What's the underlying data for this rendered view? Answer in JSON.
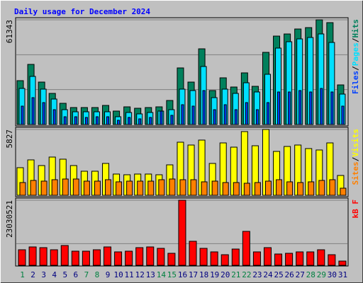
{
  "chart_data": [
    {
      "type": "bar",
      "title": "Daily usage for December 2024",
      "ylim": [
        0,
        61343
      ],
      "yticks": [
        61343
      ],
      "legend_separator": "/",
      "series": [
        {
          "name": "Hits",
          "color": "#00805c",
          "values": [
            25700,
            35230,
            24870,
            18240,
            12430,
            9950,
            9950,
            9950,
            11190,
            7880,
            10360,
            9530,
            9950,
            10360,
            14090,
            33160,
            24870,
            44350,
            19900,
            27360,
            21970,
            30260,
            22380,
            42280,
            51810,
            53050,
            55960,
            56780,
            61343,
            59690,
            23210
          ]
        },
        {
          "name": "Pages",
          "color": "#00e0ff",
          "values": [
            21140,
            28190,
            20730,
            14920,
            8700,
            7460,
            7460,
            7460,
            7460,
            4560,
            7050,
            6220,
            7050,
            7880,
            8700,
            20730,
            19900,
            33990,
            15750,
            20730,
            18240,
            24460,
            19070,
            29430,
            44770,
            48500,
            50150,
            50980,
            53060,
            48080,
            17820
          ]
        },
        {
          "name": "Files",
          "color": "#0040ff",
          "values": [
            10780,
            15750,
            12850,
            8700,
            4560,
            4560,
            4150,
            4560,
            4560,
            2490,
            4150,
            3320,
            4150,
            7880,
            5390,
            11610,
            10780,
            19900,
            8700,
            11610,
            8700,
            12850,
            8700,
            12850,
            19070,
            19070,
            19900,
            19070,
            21140,
            19070,
            10780
          ]
        }
      ]
    },
    {
      "type": "bar",
      "ylim": [
        0,
        5827
      ],
      "yticks": [
        5827
      ],
      "legend_separator": "/",
      "series": [
        {
          "name": "Visits",
          "color": "#ffff00",
          "values": [
            2444,
            3133,
            2632,
            3384,
            3196,
            2632,
            2130,
            2130,
            2820,
            1880,
            1817,
            1880,
            1880,
            1817,
            2694,
            4700,
            4449,
            4887,
            2820,
            4637,
            4261,
            5640,
            4386,
            5827,
            3885,
            4324,
            4449,
            4136,
            4010,
            4637,
            1754
          ]
        },
        {
          "name": "Sites",
          "color": "#ff8000",
          "values": [
            1128,
            1316,
            1253,
            1379,
            1441,
            1441,
            1253,
            1253,
            1379,
            1191,
            1253,
            1253,
            1253,
            1379,
            1441,
            1379,
            1379,
            1191,
            1253,
            1128,
            1128,
            1065,
            1128,
            1253,
            1379,
            1191,
            1128,
            1191,
            1316,
            1379,
            627
          ]
        }
      ]
    },
    {
      "type": "bar",
      "ylim": [
        0,
        23030521
      ],
      "yticks": [
        23030521
      ],
      "categories": [
        "1",
        "2",
        "3",
        "4",
        "5",
        "6",
        "7",
        "8",
        "9",
        "10",
        "11",
        "12",
        "13",
        "14",
        "15",
        "16",
        "17",
        "18",
        "19",
        "20",
        "21",
        "22",
        "23",
        "24",
        "25",
        "26",
        "27",
        "28",
        "29",
        "30",
        "31"
      ],
      "category_colors": [
        "#008040",
        "#000080",
        "#000080",
        "#000080",
        "#000080",
        "#000080",
        "#008040",
        "#008040",
        "#000080",
        "#000080",
        "#000080",
        "#000080",
        "#000080",
        "#008040",
        "#008040",
        "#000080",
        "#000080",
        "#000080",
        "#000080",
        "#000080",
        "#008040",
        "#008040",
        "#000080",
        "#000080",
        "#000080",
        "#000080",
        "#000080",
        "#008040",
        "#008040",
        "#000080",
        "#000080"
      ],
      "series": [
        {
          "name": "kB F",
          "color": "#ff0000",
          "values": [
            5507300,
            6508630,
            6258300,
            5507300,
            7009300,
            5006640,
            5006640,
            5507300,
            6508630,
            4756310,
            5006640,
            6258300,
            6508630,
            6007970,
            4255640,
            23030521,
            8511290,
            6007970,
            4756310,
            3754980,
            5757640,
            12015940,
            4756310,
            6258300,
            4005310,
            4255640,
            4756310,
            4756310,
            5507300,
            3754980,
            1502000
          ]
        }
      ]
    }
  ]
}
